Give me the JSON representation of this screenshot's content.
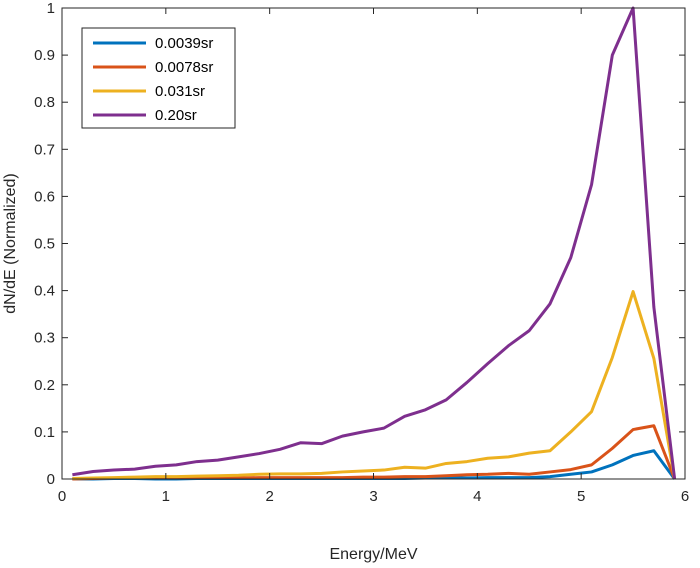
{
  "chart_data": {
    "type": "line",
    "title": "",
    "xlabel": "Energy/MeV",
    "ylabel": "dN/dE (Normalized)",
    "xlim": [
      0,
      6
    ],
    "ylim": [
      0,
      1
    ],
    "xticks": [
      0,
      1,
      2,
      3,
      4,
      5,
      6
    ],
    "yticks": [
      0,
      0.1,
      0.2,
      0.3,
      0.4,
      0.5,
      0.6,
      0.7,
      0.8,
      0.9,
      1
    ],
    "xtick_labels": [
      "0",
      "1",
      "2",
      "3",
      "4",
      "5",
      "6"
    ],
    "ytick_labels": [
      "0",
      "0.1",
      "0.2",
      "0.3",
      "0.4",
      "0.5",
      "0.6",
      "0.7",
      "0.8",
      "0.9",
      "1"
    ],
    "grid": false,
    "legend_position": "top-left",
    "x": [
      0.1,
      0.3,
      0.5,
      0.7,
      0.9,
      1.1,
      1.3,
      1.5,
      1.7,
      1.9,
      2.1,
      2.3,
      2.5,
      2.7,
      2.9,
      3.1,
      3.3,
      3.5,
      3.7,
      3.9,
      4.1,
      4.3,
      4.5,
      4.7,
      4.9,
      5.1,
      5.3,
      5.5,
      5.7,
      5.9
    ],
    "series": [
      {
        "name": "0.0039sr",
        "color": "#0072BD",
        "values": [
          0.0,
          0.0,
          0.001,
          0.001,
          0.0,
          0.0,
          0.001,
          0.001,
          0.001,
          0.001,
          0.001,
          0.001,
          0.001,
          0.001,
          0.001,
          0.001,
          0.001,
          0.002,
          0.002,
          0.002,
          0.003,
          0.003,
          0.003,
          0.005,
          0.01,
          0.015,
          0.03,
          0.05,
          0.06,
          0.0
        ]
      },
      {
        "name": "0.0078sr",
        "color": "#D95319",
        "values": [
          0.0,
          0.001,
          0.002,
          0.002,
          0.002,
          0.002,
          0.002,
          0.002,
          0.002,
          0.003,
          0.003,
          0.003,
          0.003,
          0.003,
          0.004,
          0.004,
          0.005,
          0.005,
          0.007,
          0.009,
          0.01,
          0.012,
          0.01,
          0.015,
          0.02,
          0.03,
          0.065,
          0.105,
          0.113,
          0.0
        ]
      },
      {
        "name": "0.031sr",
        "color": "#EDB120",
        "values": [
          0.001,
          0.002,
          0.003,
          0.004,
          0.005,
          0.005,
          0.006,
          0.007,
          0.008,
          0.01,
          0.011,
          0.011,
          0.012,
          0.015,
          0.017,
          0.019,
          0.025,
          0.023,
          0.033,
          0.037,
          0.044,
          0.047,
          0.055,
          0.06,
          0.1,
          0.143,
          0.258,
          0.398,
          0.256,
          0.0
        ]
      },
      {
        "name": "0.20sr",
        "color": "#7E2F8E",
        "values": [
          0.009,
          0.016,
          0.019,
          0.021,
          0.027,
          0.03,
          0.037,
          0.04,
          0.047,
          0.054,
          0.063,
          0.077,
          0.075,
          0.091,
          0.1,
          0.108,
          0.133,
          0.147,
          0.168,
          0.205,
          0.245,
          0.283,
          0.315,
          0.372,
          0.47,
          0.625,
          0.9,
          1.0,
          0.365,
          0.0
        ]
      }
    ]
  }
}
